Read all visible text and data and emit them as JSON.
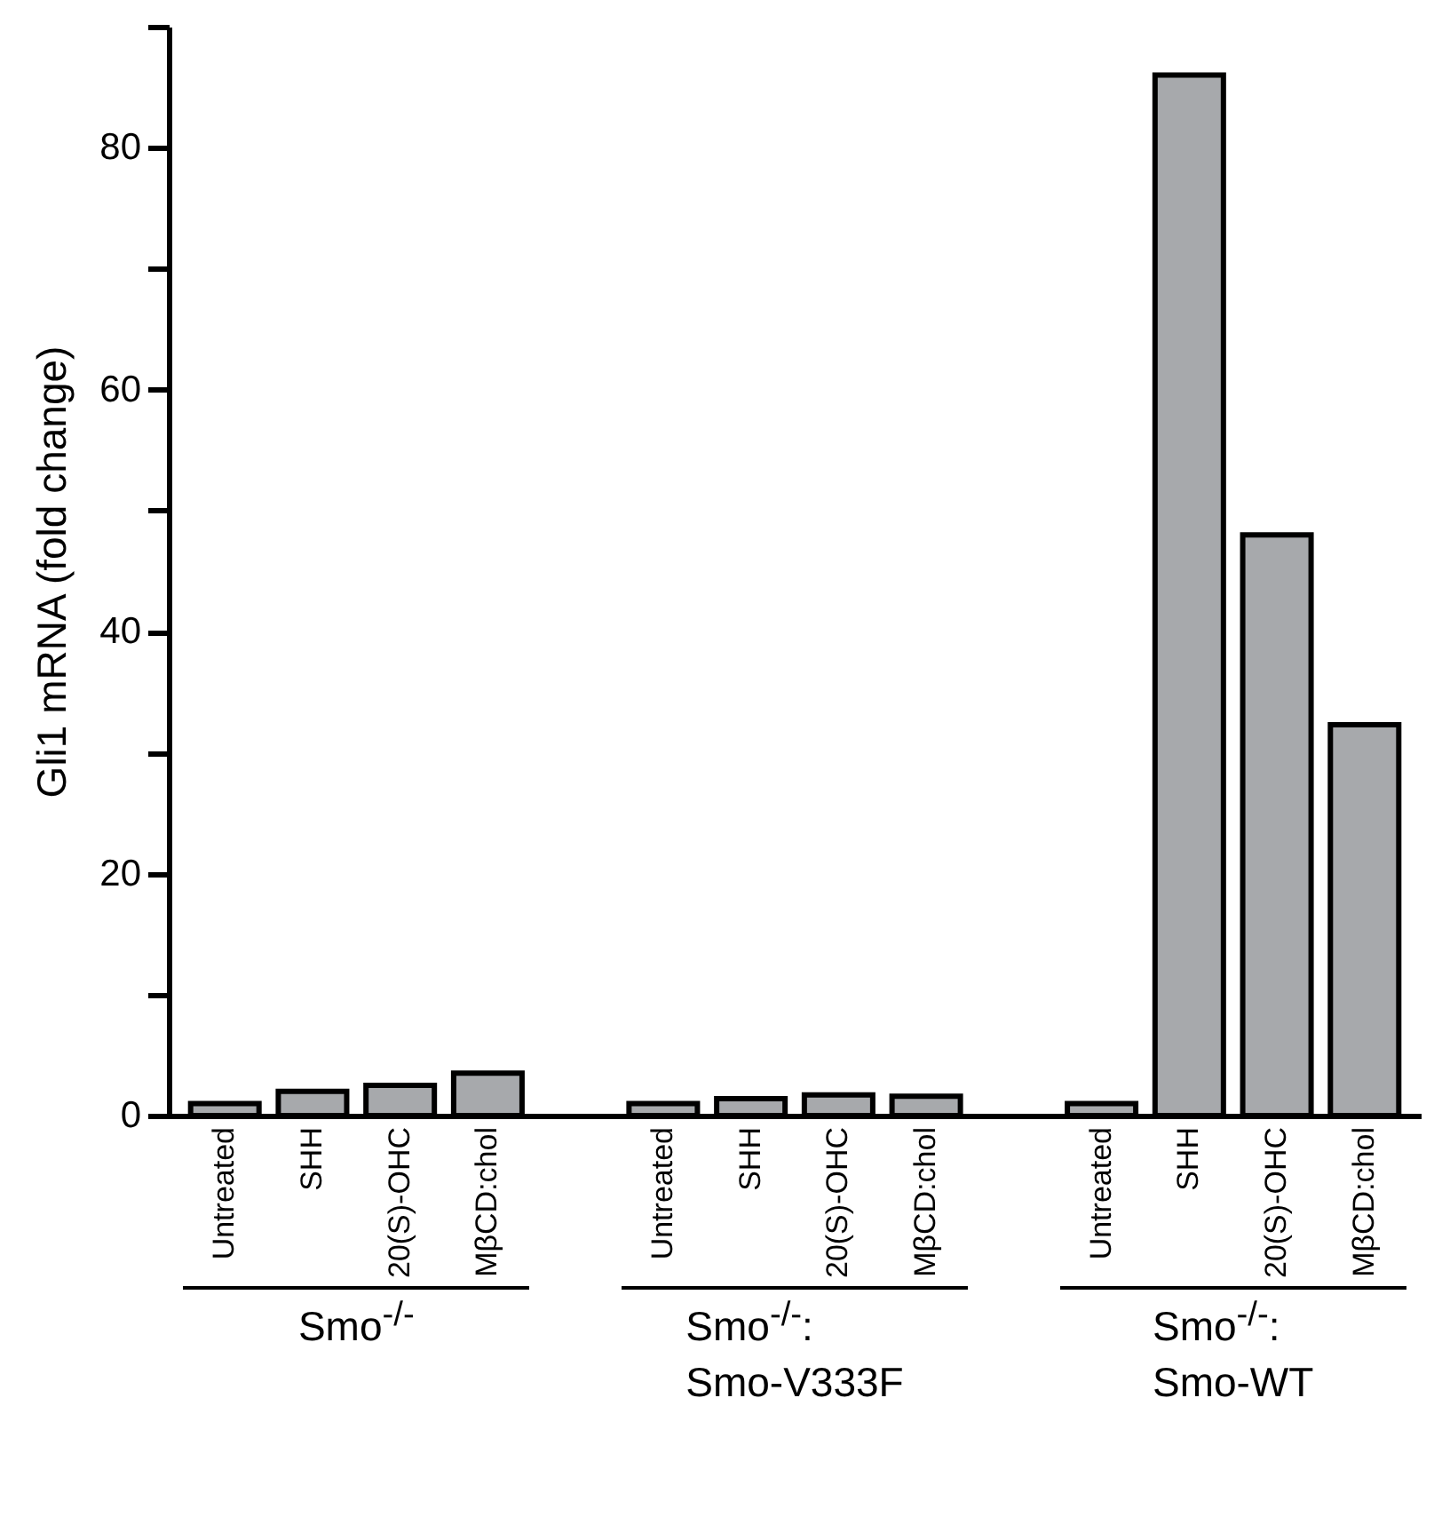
{
  "chart_data": {
    "type": "bar",
    "ylabel": "Gli1 mRNA (fold change)",
    "categories": [
      "Untreated",
      "SHH",
      "20(S)-OHC",
      "MβCD:chol",
      null,
      "Untreated",
      "SHH",
      "20(S)-OHC",
      "MβCD:chol",
      null,
      "Untreated",
      "SHH",
      "20(S)-OHC",
      "MβCD:chol"
    ],
    "values": [
      1.0,
      2.0,
      2.5,
      3.5,
      null,
      1.0,
      1.4,
      1.7,
      1.6,
      null,
      1.0,
      86,
      48,
      32.3
    ],
    "color": "#a7a9ac",
    "ylim": [
      0,
      90
    ],
    "yticks": [
      0,
      {
        "value": 10,
        "label": null
      },
      20,
      {
        "value": 30,
        "label": null
      },
      40,
      {
        "value": 50,
        "label": null
      },
      60,
      {
        "value": 70,
        "label": null
      },
      80,
      {
        "value": 90,
        "label": null
      }
    ],
    "grid": false,
    "annotations": [
      "Smo$^{-/-}$",
      "Smo$^{-/-}$:\nSmo-V333F",
      "Smo$^{-/-}$:\nSmo-WT"
    ]
  }
}
